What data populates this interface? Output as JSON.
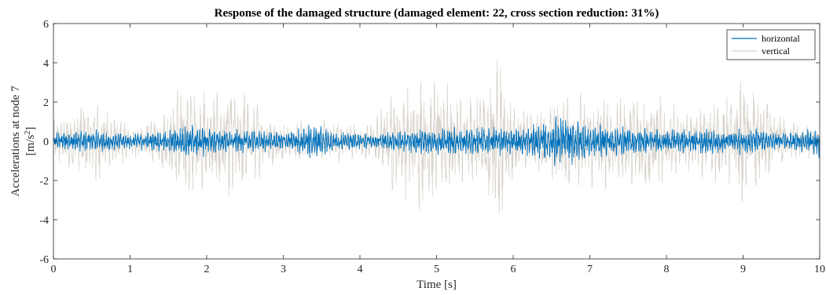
{
  "chart_data": {
    "type": "line",
    "title": "Response of the damaged structure (damaged element: 22, cross section reduction: 31%)",
    "xlabel": "Time [s]",
    "ylabel_line1": "Accelerations at node 7",
    "ylabel_line2_prefix": "[m/s",
    "ylabel_line2_sup": "2",
    "ylabel_line2_suffix": "]",
    "xlim": [
      0,
      10
    ],
    "ylim": [
      -6,
      6
    ],
    "x_ticks": [
      0,
      1,
      2,
      3,
      4,
      5,
      6,
      7,
      8,
      9,
      10
    ],
    "y_ticks": [
      -6,
      -4,
      -2,
      0,
      2,
      4,
      6
    ],
    "grid": false,
    "legend_position": "top-right",
    "series": [
      {
        "name": "horizontal",
        "color": "#0072BD",
        "envelope": {
          "t": [
            0.0,
            0.2,
            0.4,
            0.6,
            0.8,
            1.0,
            1.2,
            1.4,
            1.6,
            1.75,
            1.9,
            2.1,
            2.3,
            2.5,
            2.7,
            2.9,
            3.1,
            3.3,
            3.4,
            3.6,
            3.8,
            4.0,
            4.2,
            4.4,
            4.6,
            4.8,
            5.0,
            5.2,
            5.4,
            5.6,
            5.8,
            6.0,
            6.2,
            6.4,
            6.6,
            6.8,
            7.0,
            7.2,
            7.4,
            7.6,
            7.8,
            8.0,
            8.2,
            8.4,
            8.6,
            8.8,
            9.0,
            9.2,
            9.4,
            9.6,
            9.8,
            9.95,
            10.0
          ],
          "amp": [
            0.5,
            0.55,
            0.6,
            0.65,
            0.5,
            0.45,
            0.5,
            0.55,
            0.8,
            1.1,
            0.85,
            0.7,
            0.6,
            0.65,
            0.6,
            0.5,
            0.55,
            0.85,
            1.2,
            0.6,
            0.5,
            0.45,
            0.4,
            0.5,
            0.6,
            0.7,
            0.8,
            0.85,
            0.75,
            0.8,
            0.85,
            0.7,
            0.8,
            1.1,
            1.6,
            1.2,
            1.0,
            0.85,
            0.8,
            0.75,
            0.7,
            0.65,
            0.7,
            0.75,
            0.7,
            0.65,
            0.75,
            0.7,
            0.55,
            0.5,
            0.6,
            0.9,
            1.0
          ]
        }
      },
      {
        "name": "vertical",
        "color": "#D9D4CC",
        "envelope": {
          "t": [
            0.0,
            0.2,
            0.4,
            0.6,
            0.8,
            1.0,
            1.2,
            1.4,
            1.6,
            1.7,
            1.8,
            2.0,
            2.2,
            2.4,
            2.6,
            2.8,
            3.0,
            3.2,
            3.4,
            3.6,
            3.8,
            4.0,
            4.2,
            4.4,
            4.6,
            4.8,
            5.0,
            5.2,
            5.4,
            5.6,
            5.7,
            5.8,
            5.9,
            6.0,
            6.2,
            6.4,
            6.6,
            6.8,
            7.0,
            7.2,
            7.4,
            7.6,
            7.8,
            8.0,
            8.2,
            8.4,
            8.6,
            8.8,
            9.0,
            9.2,
            9.4,
            9.6,
            9.8,
            10.0
          ],
          "amp": [
            1.2,
            1.8,
            2.2,
            2.3,
            1.6,
            0.9,
            1.0,
            1.6,
            2.8,
            3.8,
            3.0,
            2.9,
            3.2,
            3.1,
            2.4,
            1.5,
            1.1,
            1.3,
            1.0,
            1.3,
            1.1,
            1.0,
            1.4,
            2.6,
            3.0,
            3.7,
            3.6,
            3.0,
            2.6,
            4.0,
            4.8,
            4.9,
            3.6,
            2.0,
            2.0,
            1.8,
            2.6,
            2.4,
            2.8,
            2.7,
            2.4,
            2.9,
            3.0,
            2.2,
            1.6,
            1.8,
            2.4,
            2.5,
            3.6,
            3.0,
            2.0,
            1.2,
            1.0,
            0.8
          ]
        }
      }
    ]
  }
}
